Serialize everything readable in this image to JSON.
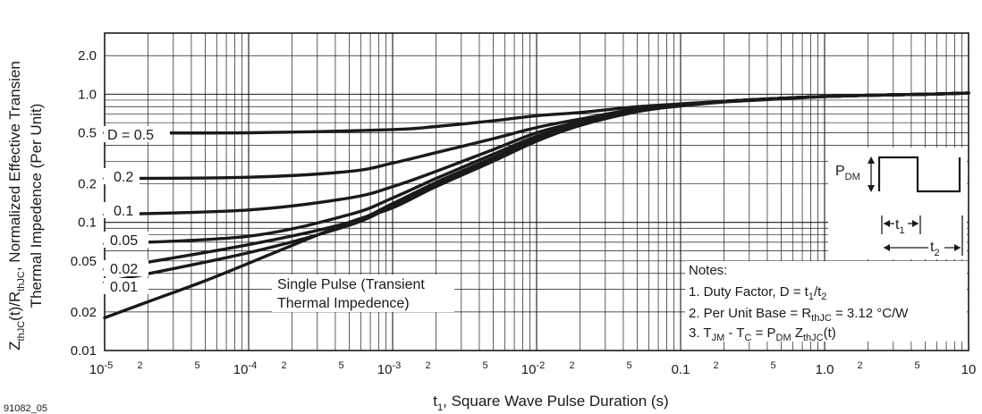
{
  "chart_data": {
    "type": "line",
    "xscale": "log",
    "yscale": "log",
    "xlim": [
      1e-05,
      10
    ],
    "ylim": [
      0.01,
      3
    ],
    "grid": true,
    "xlabel": {
      "pre": "t",
      "sub": "1",
      "post": ", Square Wave Pulse Duration (s)"
    },
    "ylabel_line1": [
      {
        "t": "Z"
      },
      {
        "t": "thJC",
        "sub": true
      },
      {
        "t": "(t)/R"
      },
      {
        "t": "thJC",
        "sub": true
      },
      {
        "t": ", Normalized Effective Transien"
      }
    ],
    "ylabel_line2": "Thermal Impedence (Per Unit)",
    "figure_id": "91082_05",
    "y_ticks": [
      {
        "value": 2.0,
        "label": "2.0"
      },
      {
        "value": 1.0,
        "label": "1.0"
      },
      {
        "value": 0.5,
        "label": "0.5"
      },
      {
        "value": 0.2,
        "label": "0.2"
      },
      {
        "value": 0.1,
        "label": "0.1"
      },
      {
        "value": 0.05,
        "label": "0.05"
      },
      {
        "value": 0.02,
        "label": "0.02"
      },
      {
        "value": 0.01,
        "label": "0.01"
      }
    ],
    "x_ticks": [
      {
        "value": 1e-05,
        "base": "10",
        "exp": "-5"
      },
      {
        "value": 2e-05,
        "base": "2"
      },
      {
        "value": 5e-05,
        "base": "5"
      },
      {
        "value": 0.0001,
        "base": "10",
        "exp": "-4"
      },
      {
        "value": 0.0002,
        "base": "2"
      },
      {
        "value": 0.0005,
        "base": "5"
      },
      {
        "value": 0.001,
        "base": "10",
        "exp": "-3"
      },
      {
        "value": 0.002,
        "base": "2"
      },
      {
        "value": 0.005,
        "base": "5"
      },
      {
        "value": 0.01,
        "base": "10",
        "exp": "-2"
      },
      {
        "value": 0.02,
        "base": "2"
      },
      {
        "value": 0.05,
        "base": "5"
      },
      {
        "value": 0.1,
        "base": "0.1"
      },
      {
        "value": 0.2,
        "base": "2"
      },
      {
        "value": 0.5,
        "base": "5"
      },
      {
        "value": 1.0,
        "base": "1.0"
      },
      {
        "value": 2,
        "base": "2"
      },
      {
        "value": 5,
        "base": "5"
      },
      {
        "value": 10,
        "base": "10"
      }
    ],
    "series": [
      {
        "name": "D = 0.5",
        "x": [
          1e-05,
          0.0001,
          0.001,
          0.002,
          0.005,
          0.01,
          0.02,
          0.05,
          0.1,
          0.2,
          0.5,
          1,
          2,
          5,
          10
        ],
        "values": [
          0.5,
          0.5,
          0.53,
          0.56,
          0.62,
          0.68,
          0.72,
          0.8,
          0.84,
          0.88,
          0.93,
          0.96,
          0.98,
          1.0,
          1.02
        ]
      },
      {
        "name": "0.2",
        "x": [
          1e-05,
          0.0001,
          0.0005,
          0.001,
          0.002,
          0.005,
          0.01,
          0.02,
          0.05,
          0.1,
          0.2,
          0.5,
          1,
          2,
          5,
          10
        ],
        "values": [
          0.22,
          0.225,
          0.25,
          0.29,
          0.35,
          0.45,
          0.55,
          0.64,
          0.77,
          0.83,
          0.88,
          0.93,
          0.96,
          0.98,
          1.0,
          1.02
        ]
      },
      {
        "name": "0.1",
        "x": [
          1e-05,
          0.0001,
          0.0005,
          0.001,
          0.002,
          0.005,
          0.01,
          0.02,
          0.05,
          0.1,
          0.2,
          0.5,
          1,
          2,
          5,
          10
        ],
        "values": [
          0.115,
          0.125,
          0.155,
          0.19,
          0.25,
          0.37,
          0.5,
          0.61,
          0.76,
          0.83,
          0.88,
          0.93,
          0.96,
          0.98,
          1.0,
          1.02
        ]
      },
      {
        "name": "0.05",
        "x": [
          1e-05,
          0.0001,
          0.0005,
          0.001,
          0.002,
          0.005,
          0.01,
          0.02,
          0.05,
          0.1,
          0.2,
          0.5,
          1,
          2,
          5,
          10
        ],
        "values": [
          0.068,
          0.078,
          0.115,
          0.155,
          0.22,
          0.34,
          0.47,
          0.6,
          0.75,
          0.82,
          0.88,
          0.93,
          0.96,
          0.98,
          1.0,
          1.02
        ]
      },
      {
        "name": "0.02",
        "x": [
          1e-05,
          0.0001,
          0.0005,
          0.001,
          0.002,
          0.005,
          0.01,
          0.02,
          0.05,
          0.1,
          0.2,
          0.5,
          1,
          2,
          5,
          10
        ],
        "values": [
          0.043,
          0.067,
          0.1,
          0.14,
          0.205,
          0.32,
          0.45,
          0.59,
          0.74,
          0.82,
          0.88,
          0.93,
          0.96,
          0.98,
          1.0,
          1.02
        ]
      },
      {
        "name": "0.01",
        "x": [
          1e-05,
          0.0001,
          0.0005,
          0.001,
          0.002,
          0.005,
          0.01,
          0.02,
          0.05,
          0.1,
          0.2,
          0.5,
          1,
          2,
          5,
          10
        ],
        "values": [
          0.034,
          0.058,
          0.095,
          0.135,
          0.2,
          0.31,
          0.44,
          0.58,
          0.74,
          0.82,
          0.88,
          0.93,
          0.96,
          0.98,
          1.0,
          1.02
        ]
      },
      {
        "name": "Single Pulse (Transient Thermal Impedence)",
        "x": [
          1e-05,
          2e-05,
          5e-05,
          0.0001,
          0.0002,
          0.0005,
          0.001,
          0.002,
          0.005,
          0.01,
          0.02,
          0.05,
          0.1,
          0.2,
          0.5,
          1,
          2,
          5,
          10
        ],
        "values": [
          0.018,
          0.024,
          0.035,
          0.048,
          0.066,
          0.1,
          0.13,
          0.19,
          0.3,
          0.43,
          0.57,
          0.73,
          0.81,
          0.87,
          0.92,
          0.96,
          0.98,
          1.0,
          1.02
        ]
      }
    ],
    "curve_labels": {
      "d05": "D = 0.5",
      "d02": "0.2",
      "d01": "0.1",
      "d005": "0.05",
      "d002": "0.02",
      "d001": "0.01",
      "single_pulse_line1": "Single Pulse (Transient",
      "single_pulse_line2": "Thermal Impedence)"
    },
    "inset": {
      "p_dm": "P",
      "p_dm_sub": "DM",
      "t1": "t",
      "t1_sub": "1",
      "t2": "t",
      "t2_sub": "2"
    },
    "notes": {
      "title": "Notes:",
      "n1": {
        "pre": "1.  Duty Factor, D = t",
        "s1": "1",
        "mid": "/t",
        "s2": "2"
      },
      "n2": {
        "pre": "2.  Per Unit Base = R",
        "s1": "thJC",
        "post": " = 3.12 °C/W"
      },
      "n3": {
        "pre": "3.  T",
        "s1": "JM",
        "a": " - T",
        "s2": "C",
        "b": " = P",
        "s3": "DM",
        "c": " Z",
        "s4": "thJC",
        "d": "(t)"
      }
    }
  }
}
